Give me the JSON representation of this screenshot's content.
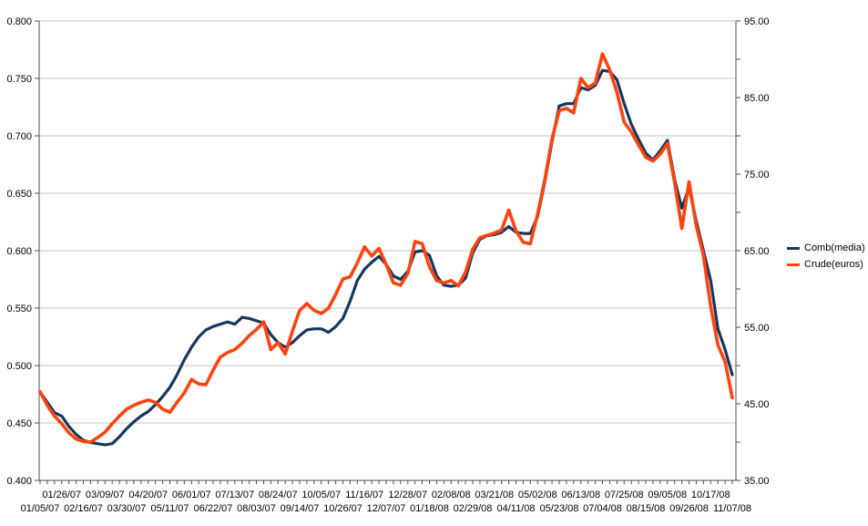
{
  "colors": {
    "background": "#ffffff",
    "gridline": "#c6c6c6",
    "axis": "#4d4d4d",
    "text": "#000000",
    "series_blue": "#17375E",
    "series_orange": "#FF420E"
  },
  "chart_data": {
    "type": "line",
    "title": "",
    "grid": "horizontal",
    "legend_position": "right",
    "x_axis": {
      "tick_label_rows": "staggered-2",
      "points_per_labeled_tick": 3,
      "tick_labels": [
        "01/05/07",
        "01/26/07",
        "02/16/07",
        "03/09/07",
        "03/30/07",
        "04/20/07",
        "05/11/07",
        "06/01/07",
        "06/22/07",
        "07/13/07",
        "08/03/07",
        "08/24/07",
        "09/14/07",
        "10/05/07",
        "10/26/07",
        "11/16/07",
        "12/07/07",
        "12/28/07",
        "01/18/08",
        "02/08/08",
        "02/29/08",
        "03/21/08",
        "04/11/08",
        "05/02/08",
        "05/23/08",
        "06/13/08",
        "07/04/08",
        "07/25/08",
        "08/15/08",
        "09/05/08",
        "09/26/08",
        "10/17/08",
        "11/07/08"
      ]
    },
    "left_axis": {
      "min": 0.4,
      "max": 0.8,
      "step": 0.05,
      "tick_labels": [
        "0.800",
        "0.750",
        "0.700",
        "0.650",
        "0.600",
        "0.550",
        "0.500",
        "0.450",
        "0.400"
      ]
    },
    "right_axis": {
      "min": 35,
      "max": 95,
      "label_step": 10,
      "minor_tick_step": 5,
      "tick_labels": [
        "95.00",
        "85.00",
        "75.00",
        "65.00",
        "55.00",
        "45.00",
        "35.00"
      ]
    },
    "series": [
      {
        "name": "Comb(media)",
        "axis": "left",
        "color": "#17375E",
        "stroke_width": 3.2,
        "values": [
          0.477,
          0.468,
          0.459,
          0.456,
          0.447,
          0.44,
          0.435,
          0.433,
          0.432,
          0.431,
          0.432,
          0.438,
          0.445,
          0.451,
          0.456,
          0.46,
          0.466,
          0.473,
          0.481,
          0.492,
          0.505,
          0.516,
          0.525,
          0.531,
          0.534,
          0.536,
          0.538,
          0.536,
          0.542,
          0.541,
          0.539,
          0.537,
          0.527,
          0.52,
          0.516,
          0.52,
          0.526,
          0.531,
          0.532,
          0.532,
          0.529,
          0.534,
          0.541,
          0.556,
          0.574,
          0.584,
          0.59,
          0.595,
          0.588,
          0.578,
          0.575,
          0.582,
          0.599,
          0.6,
          0.596,
          0.578,
          0.57,
          0.569,
          0.57,
          0.576,
          0.598,
          0.61,
          0.613,
          0.614,
          0.616,
          0.621,
          0.616,
          0.615,
          0.615,
          0.63,
          0.66,
          0.695,
          0.726,
          0.728,
          0.728,
          0.742,
          0.74,
          0.744,
          0.757,
          0.756,
          0.749,
          0.728,
          0.71,
          0.697,
          0.685,
          0.679,
          0.687,
          0.696,
          0.662,
          0.637,
          0.655,
          0.626,
          0.6,
          0.574,
          0.532,
          0.514,
          0.492
        ]
      },
      {
        "name": "Crude(euros)",
        "axis": "right",
        "color": "#FF420E",
        "stroke_width": 3.6,
        "values": [
          46.6,
          44.8,
          43.4,
          42.4,
          41.2,
          40.4,
          40.1,
          40.0,
          40.6,
          41.3,
          42.4,
          43.4,
          44.3,
          44.8,
          45.2,
          45.5,
          45.2,
          44.3,
          43.9,
          45.2,
          46.4,
          48.2,
          47.6,
          47.5,
          49.4,
          51.1,
          51.7,
          52.1,
          52.9,
          53.9,
          54.7,
          55.7,
          52.1,
          53.0,
          51.5,
          54.5,
          57.2,
          58.1,
          57.2,
          56.8,
          57.5,
          59.3,
          61.3,
          61.6,
          63.4,
          65.5,
          64.3,
          65.3,
          63.2,
          60.8,
          60.5,
          62.0,
          66.2,
          65.9,
          62.9,
          61.1,
          60.8,
          61.1,
          60.4,
          62.2,
          65.2,
          66.7,
          67.0,
          67.3,
          67.7,
          70.3,
          67.6,
          66.1,
          65.9,
          69.8,
          74.3,
          79.6,
          83.3,
          83.6,
          83.0,
          87.5,
          86.3,
          86.9,
          90.7,
          88.6,
          85.7,
          81.8,
          80.5,
          78.8,
          77.2,
          76.7,
          77.6,
          79.0,
          73.9,
          67.9,
          74.0,
          68.3,
          64.4,
          57.7,
          52.7,
          50.5,
          45.8
        ]
      }
    ]
  },
  "legend": {
    "items": [
      {
        "label": "Comb(media)"
      },
      {
        "label": "Crude(euros)"
      }
    ]
  }
}
